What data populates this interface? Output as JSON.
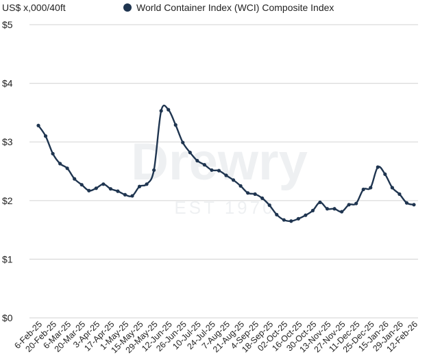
{
  "chart_data": {
    "type": "line",
    "title": "",
    "ylabel": "US$ x,000/40ft",
    "xlabel": "",
    "ylim": [
      0,
      5
    ],
    "y_ticks": [
      "$0",
      "$1",
      "$2",
      "$3",
      "$4",
      "$5"
    ],
    "y_tick_values": [
      0,
      1,
      2,
      3,
      4,
      5
    ],
    "grid": true,
    "legend_position": "top",
    "x_tick_labels": [
      "6-Feb-25",
      "20-Feb-25",
      "6-Mar-25",
      "20-Mar-25",
      "3-Apr-25",
      "17-Apr-25",
      "1-May-25",
      "15-May-25",
      "29-May-25",
      "12-Jun-25",
      "26-Jun-25",
      "10-Jul-25",
      "24-Jul-25",
      "7-Aug-25",
      "21-Aug-25",
      "4-Sep-25",
      "18-Sep-25",
      "02-Oct-25",
      "16-Oct-25",
      "30-Oct-25",
      "13-Nov-25",
      "27-Nov-25",
      "11-Dec-25",
      "25-Dec-25",
      "15-Jan-26",
      "29-Jan-26",
      "12-Feb-26"
    ],
    "series": [
      {
        "name": "World Container Index (WCI) Composite Index",
        "color": "#1f3550",
        "values": [
          3.28,
          3.1,
          2.8,
          2.63,
          2.55,
          2.37,
          2.27,
          2.17,
          2.21,
          2.28,
          2.2,
          2.16,
          2.1,
          2.08,
          2.24,
          2.28,
          2.52,
          3.53,
          3.55,
          3.29,
          2.99,
          2.82,
          2.68,
          2.61,
          2.52,
          2.51,
          2.43,
          2.35,
          2.25,
          2.13,
          2.11,
          2.04,
          1.92,
          1.76,
          1.67,
          1.65,
          1.69,
          1.75,
          1.83,
          1.97,
          1.86,
          1.86,
          1.81,
          1.93,
          1.95,
          2.19,
          2.22,
          2.57,
          2.45,
          2.22,
          2.11,
          1.96,
          1.93
        ]
      }
    ],
    "watermark": {
      "brand": "Drewry",
      "tagline": "EST 1970"
    }
  }
}
